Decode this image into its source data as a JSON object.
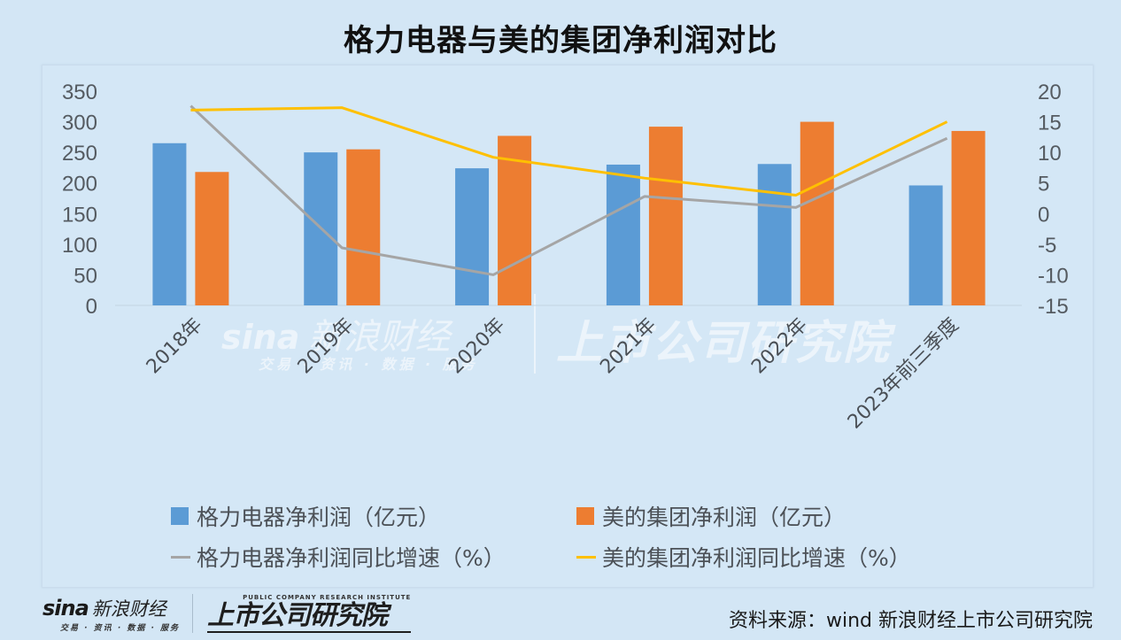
{
  "title": "格力电器与美的集团净利润对比",
  "chart_data": {
    "type": "bar+line",
    "title": "格力电器与美的集团净利润对比",
    "categories": [
      "2018年",
      "2019年",
      "2020年",
      "2021年",
      "2022年",
      "2023年前三季度"
    ],
    "bar_series": [
      {
        "name": "格力电器净利润（亿元）",
        "color": "#5b9bd5",
        "axis": "left",
        "values": [
          265,
          250,
          224,
          230,
          231,
          196
        ]
      },
      {
        "name": "美的集团净利润（亿元）",
        "color": "#ed7d31",
        "axis": "left",
        "values": [
          218,
          255,
          277,
          292,
          300,
          285
        ]
      }
    ],
    "line_series": [
      {
        "name": "格力电器净利润同比增速（%）",
        "color": "#a5a5a5",
        "axis": "right",
        "values": [
          17.6,
          -5.6,
          -10.0,
          2.8,
          1.0,
          12.3
        ]
      },
      {
        "name": "美的集团净利润同比增速（%）",
        "color": "#ffc000",
        "axis": "right",
        "values": [
          16.9,
          17.3,
          9.2,
          5.8,
          3.0,
          15.0
        ]
      }
    ],
    "left_axis": {
      "min": 0,
      "max": 350,
      "step": 50,
      "ticks": [
        "0",
        "50",
        "100",
        "150",
        "200",
        "250",
        "300",
        "350"
      ]
    },
    "right_axis": {
      "min": -15,
      "max": 20,
      "step": 5,
      "ticks": [
        "-15",
        "-10",
        "-5",
        "0",
        "5",
        "10",
        "15",
        "20"
      ]
    },
    "xlabel": "",
    "ylabel": "",
    "grid": false,
    "legend_position": "bottom"
  },
  "legend": [
    {
      "label": "格力电器净利润（亿元）",
      "type": "box",
      "color": "#5b9bd5"
    },
    {
      "label": "美的集团净利润（亿元）",
      "type": "box",
      "color": "#ed7d31"
    },
    {
      "label": "格力电器净利润同比增速（%）",
      "type": "line",
      "color": "#a5a5a5"
    },
    {
      "label": "美的集团净利润同比增速（%）",
      "type": "line",
      "color": "#ffc000"
    }
  ],
  "watermark": {
    "sina": "sina",
    "sina_cn": "新浪财经",
    "sina_sub": "交易 · 资讯 · 数据 · 服务",
    "institute": "上市公司研究院",
    "institute_en": "PUBLIC COMPANY RESEARCH INSTITUTE"
  },
  "footer": {
    "sina": "sina",
    "sina_cn": "新浪财经",
    "sina_sub": "交易 · 资讯 · 数据 · 服务",
    "institute_en": "PUBLIC COMPANY RESEARCH INSTITUTE",
    "institute": "上市公司研究院",
    "source": "资料来源：wind 新浪财经上市公司研究院"
  }
}
